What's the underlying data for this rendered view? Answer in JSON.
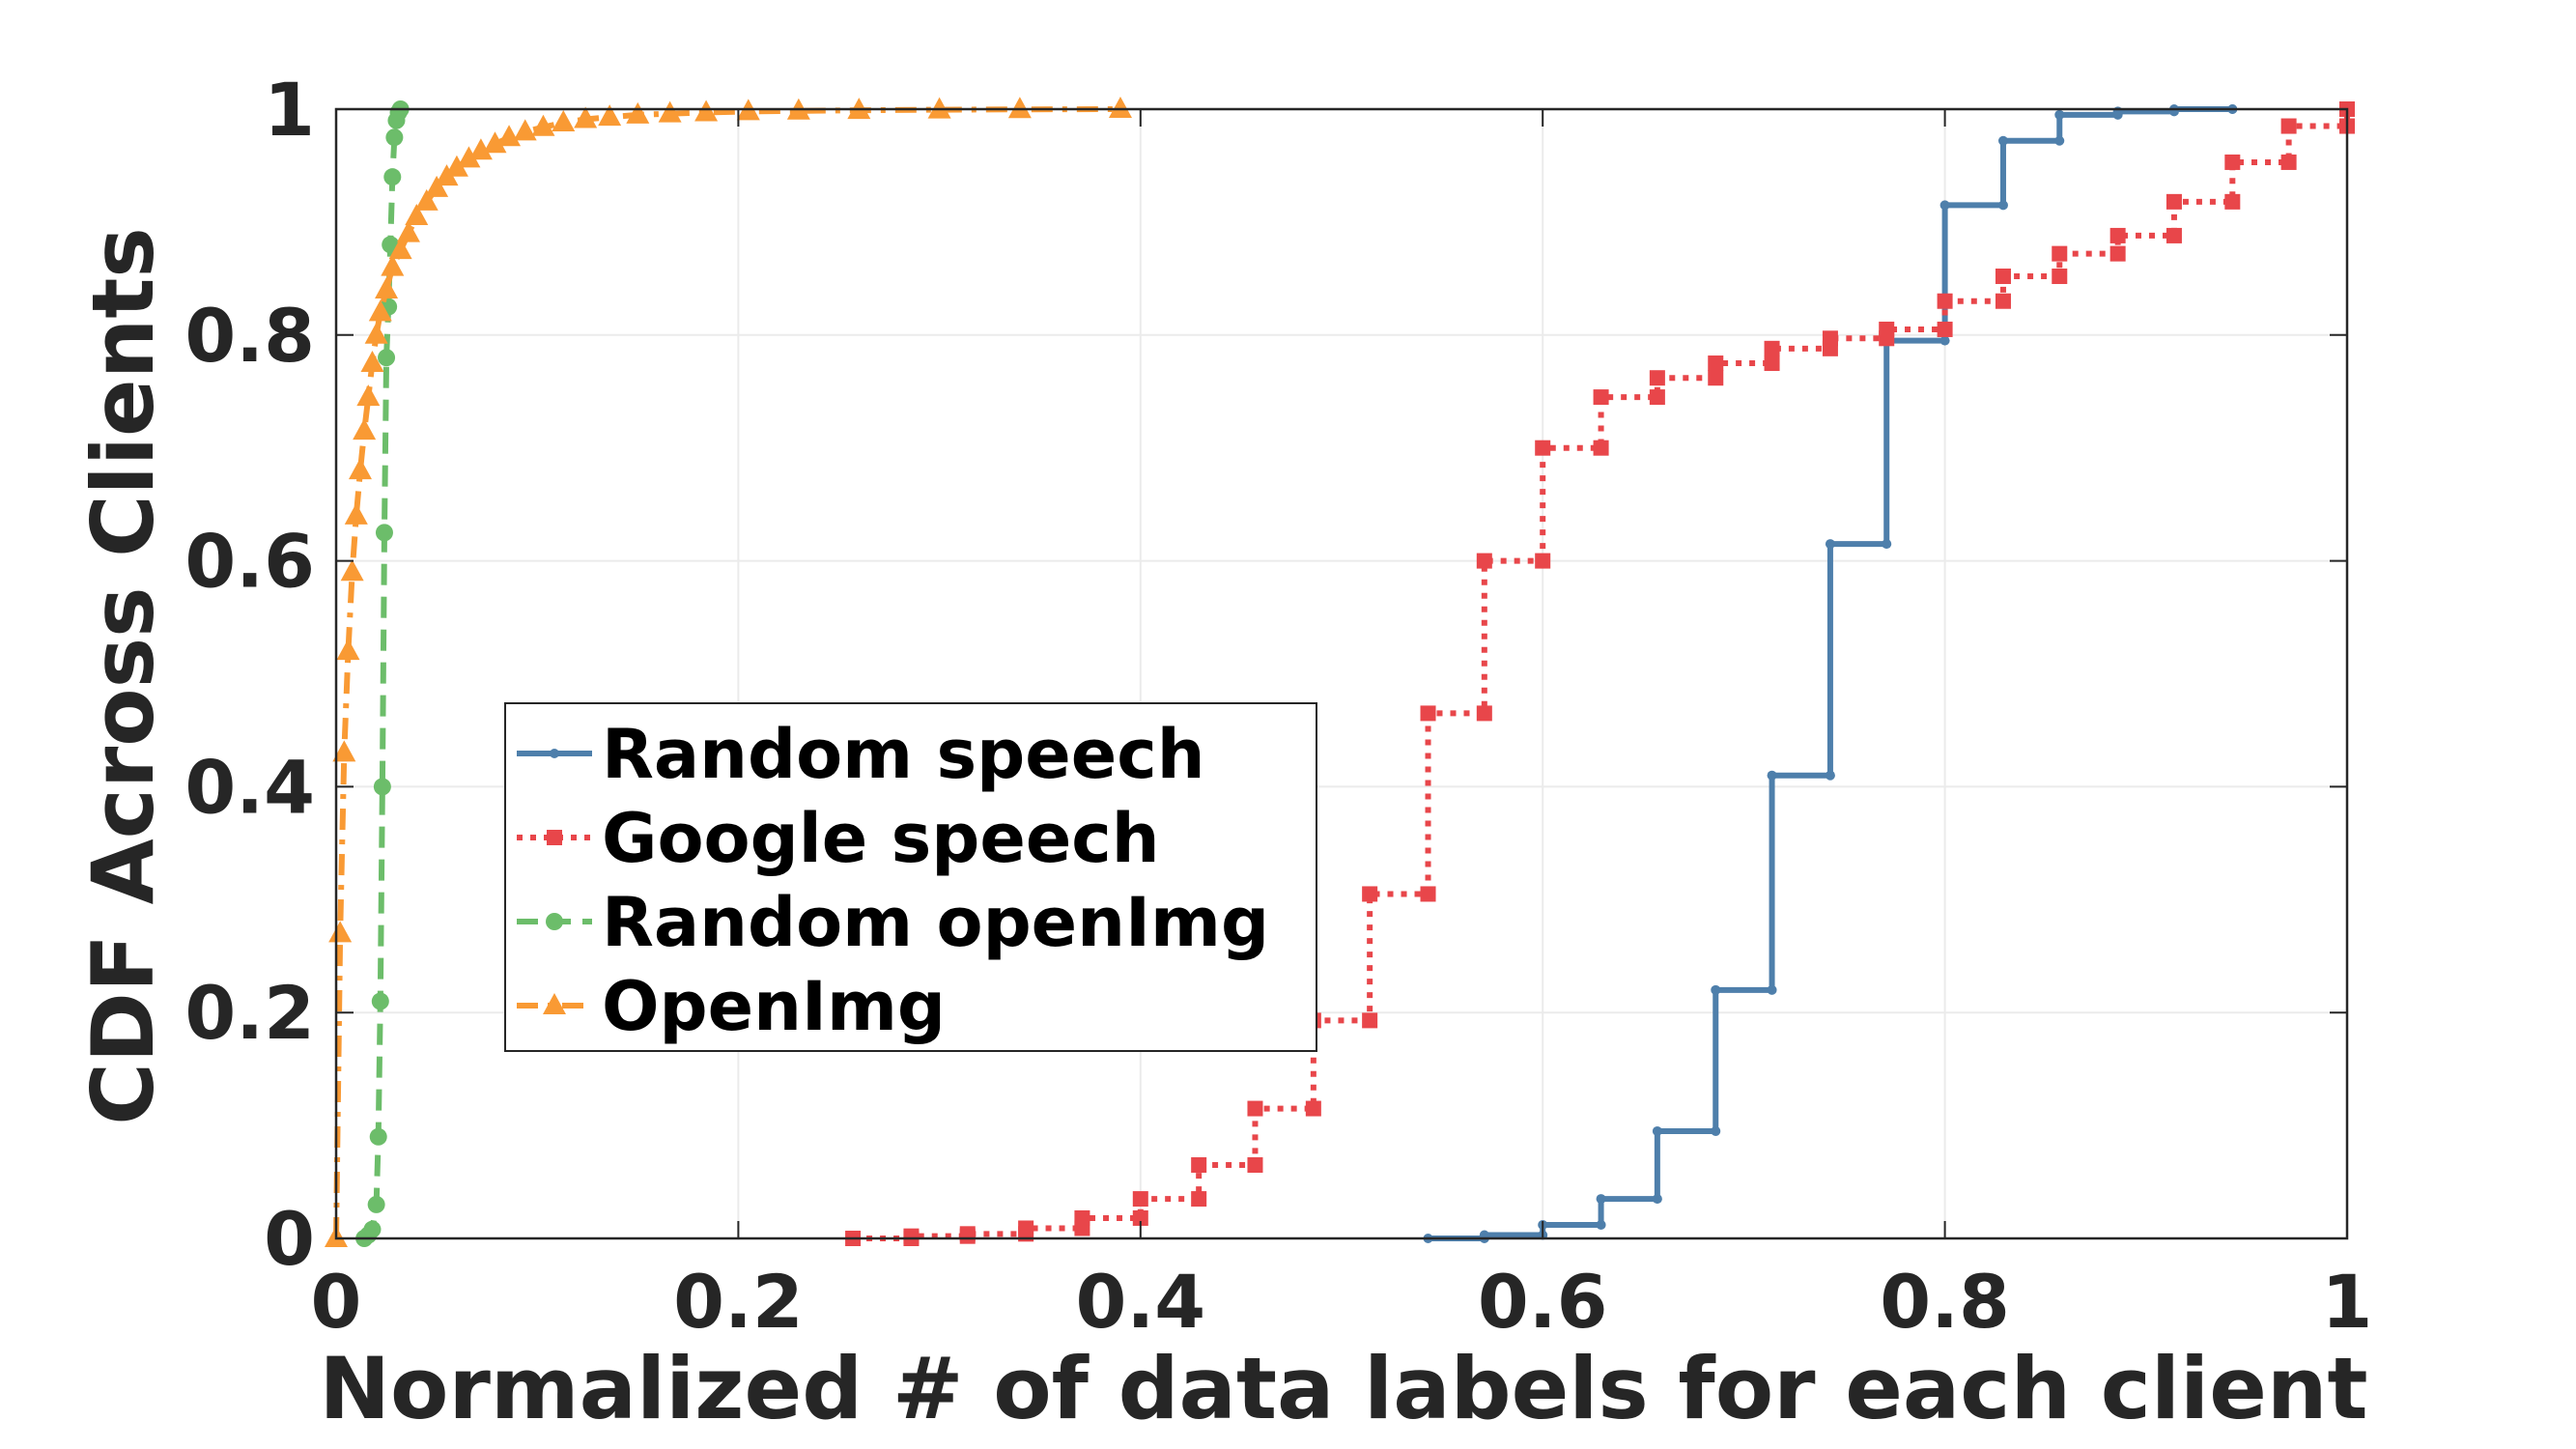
{
  "chart_data": {
    "type": "line",
    "xlabel": "Normalized # of data labels for each client",
    "ylabel": "CDF Across Clients",
    "xlim": [
      0,
      1
    ],
    "ylim": [
      0,
      1
    ],
    "x_ticks": [
      0,
      0.2,
      0.4,
      0.6,
      0.8,
      1
    ],
    "x_tick_labels": [
      "0",
      "0.2",
      "0.4",
      "0.6",
      "0.8",
      "1"
    ],
    "y_ticks": [
      0,
      0.2,
      0.4,
      0.6,
      0.8,
      1
    ],
    "y_tick_labels": [
      "0",
      "0.2",
      "0.4",
      "0.6",
      "0.8",
      "1"
    ],
    "grid": true,
    "legend_position": "center-left",
    "series": [
      {
        "name": "Random speech",
        "color": "#4e7fab",
        "line_style": "solid",
        "marker": "point",
        "step": true,
        "x": [
          0.543,
          0.571,
          0.6,
          0.629,
          0.657,
          0.686,
          0.714,
          0.743,
          0.771,
          0.8,
          0.829,
          0.857,
          0.886,
          0.914,
          0.943
        ],
        "y": [
          0.0,
          0.003,
          0.012,
          0.035,
          0.095,
          0.22,
          0.41,
          0.615,
          0.795,
          0.915,
          0.972,
          0.995,
          0.998,
          1.0,
          1.0
        ]
      },
      {
        "name": "Google speech",
        "color": "#e8464a",
        "line_style": "dotted",
        "marker": "square",
        "step": true,
        "x": [
          0.257,
          0.286,
          0.314,
          0.343,
          0.371,
          0.4,
          0.429,
          0.457,
          0.486,
          0.514,
          0.543,
          0.571,
          0.6,
          0.629,
          0.657,
          0.686,
          0.714,
          0.743,
          0.771,
          0.8,
          0.829,
          0.857,
          0.886,
          0.914,
          0.943,
          0.971,
          1.0
        ],
        "y": [
          0.0,
          0.002,
          0.004,
          0.009,
          0.018,
          0.035,
          0.065,
          0.115,
          0.193,
          0.305,
          0.465,
          0.6,
          0.7,
          0.745,
          0.762,
          0.775,
          0.788,
          0.797,
          0.805,
          0.83,
          0.852,
          0.872,
          0.888,
          0.918,
          0.953,
          0.985,
          1.0
        ]
      },
      {
        "name": "Random openImg",
        "color": "#6cbd6a",
        "line_style": "dashed",
        "marker": "circle",
        "step": false,
        "x": [
          0.014,
          0.016,
          0.018,
          0.02,
          0.021,
          0.022,
          0.023,
          0.024,
          0.025,
          0.026,
          0.027,
          0.028,
          0.029,
          0.03,
          0.031,
          0.032
        ],
        "y": [
          0.0,
          0.003,
          0.008,
          0.03,
          0.09,
          0.21,
          0.4,
          0.625,
          0.78,
          0.825,
          0.88,
          0.94,
          0.975,
          0.99,
          0.997,
          1.0
        ]
      },
      {
        "name": "OpenImg",
        "color": "#f99a34",
        "line_style": "dashdot",
        "marker": "triangle",
        "step": false,
        "x": [
          0.0,
          0.002,
          0.004,
          0.006,
          0.008,
          0.01,
          0.012,
          0.014,
          0.016,
          0.018,
          0.02,
          0.022,
          0.025,
          0.028,
          0.032,
          0.036,
          0.04,
          0.045,
          0.05,
          0.055,
          0.06,
          0.066,
          0.072,
          0.079,
          0.086,
          0.094,
          0.103,
          0.113,
          0.124,
          0.136,
          0.15,
          0.166,
          0.184,
          0.205,
          0.23,
          0.26,
          0.3,
          0.34,
          0.39
        ],
        "y": [
          0.0,
          0.27,
          0.43,
          0.52,
          0.59,
          0.64,
          0.68,
          0.715,
          0.745,
          0.775,
          0.8,
          0.82,
          0.84,
          0.86,
          0.875,
          0.89,
          0.905,
          0.918,
          0.93,
          0.94,
          0.948,
          0.956,
          0.963,
          0.969,
          0.975,
          0.98,
          0.984,
          0.988,
          0.991,
          0.993,
          0.995,
          0.996,
          0.997,
          0.998,
          0.9985,
          0.999,
          0.9995,
          0.9998,
          1.0
        ]
      }
    ]
  }
}
